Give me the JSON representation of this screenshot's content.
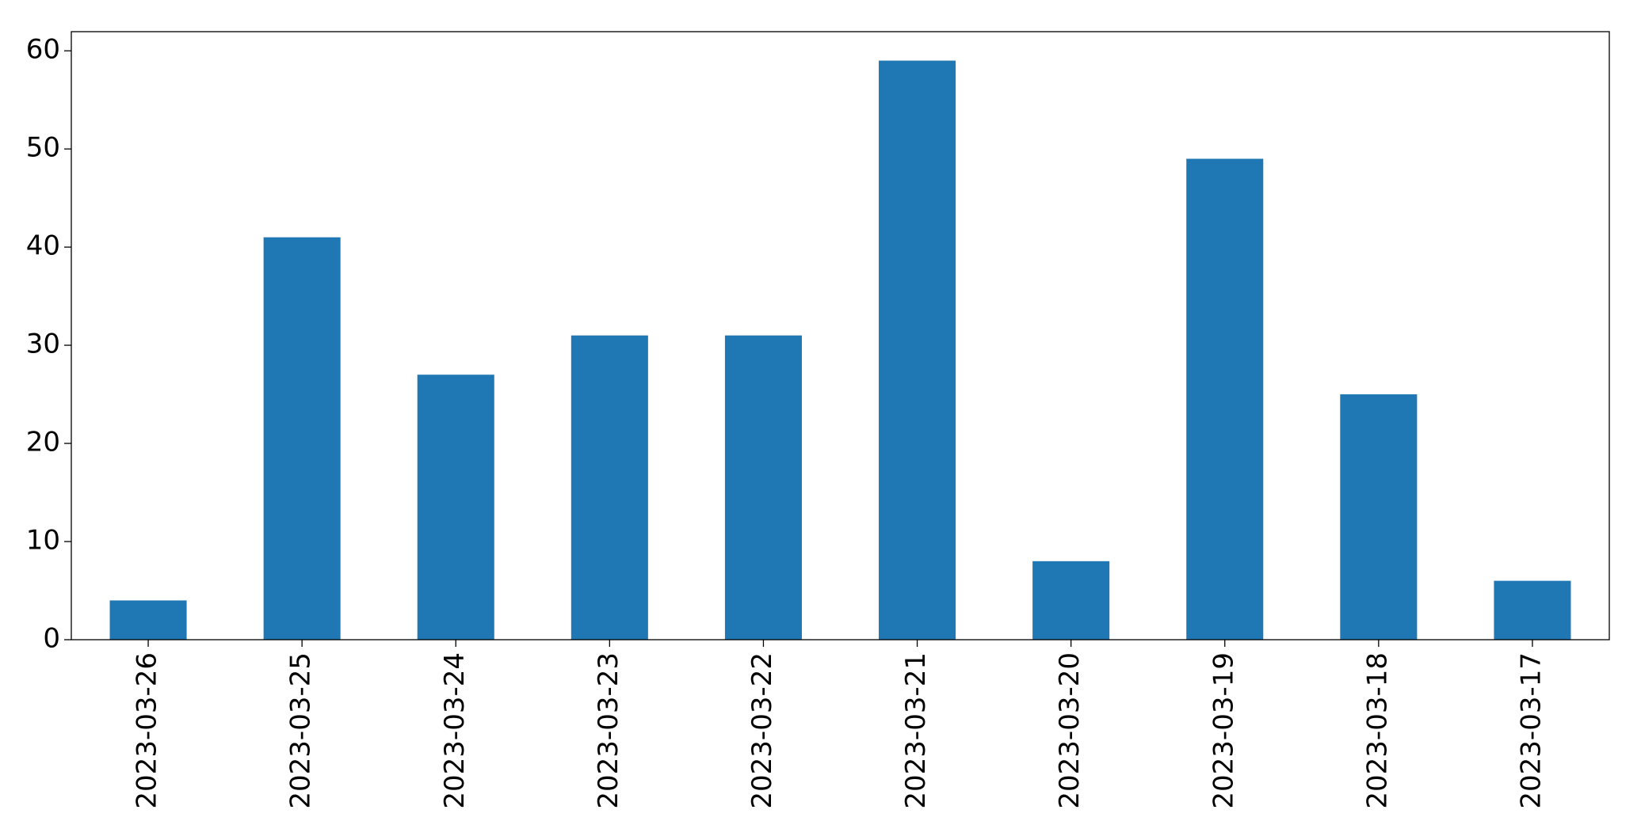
{
  "chart_data": {
    "type": "bar",
    "categories": [
      "2023-03-26",
      "2023-03-25",
      "2023-03-24",
      "2023-03-23",
      "2023-03-22",
      "2023-03-21",
      "2023-03-20",
      "2023-03-19",
      "2023-03-18",
      "2023-03-17"
    ],
    "values": [
      4,
      41,
      27,
      31,
      31,
      59,
      8,
      49,
      25,
      6
    ],
    "color": "#1f77b4",
    "ylim": [
      0,
      61.95
    ],
    "yticks": [
      0,
      10,
      20,
      30,
      40,
      50,
      60
    ],
    "grid": false
  }
}
